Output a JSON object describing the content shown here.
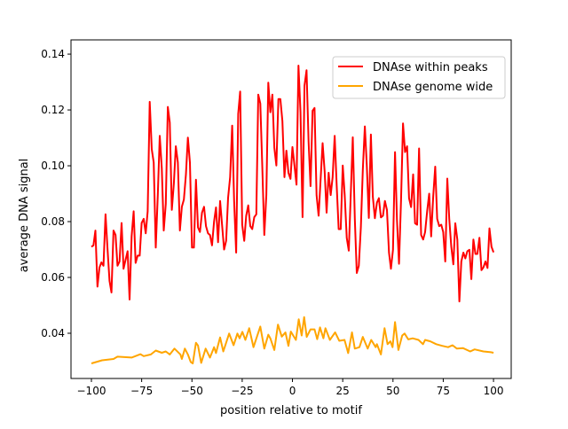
{
  "chart_data": {
    "type": "line",
    "title": "",
    "xlabel": "position relative to motif",
    "ylabel": "average DNA signal",
    "xlim": [
      -110.15,
      108.8
    ],
    "ylim": [
      0.0238,
      0.1451
    ],
    "xticks": [
      -100,
      -75,
      -50,
      -25,
      0,
      25,
      50,
      75,
      100
    ],
    "xtick_labels": [
      "−100",
      "−75",
      "−50",
      "−25",
      "0",
      "25",
      "50",
      "75",
      "100"
    ],
    "yticks": [
      0.04,
      0.06,
      0.08,
      0.1,
      0.12,
      0.14
    ],
    "ytick_labels": [
      "0.04",
      "0.06",
      "0.08",
      "0.10",
      "0.12",
      "0.14"
    ],
    "grid": false,
    "legend_position": "top-right",
    "series": [
      {
        "name": "DNAse within peaks",
        "color": "#ff0000",
        "x_start": -100,
        "x_step": 1,
        "values": [
          0.071,
          0.0715,
          0.0768,
          0.0567,
          0.0636,
          0.0654,
          0.0642,
          0.0826,
          0.0705,
          0.0588,
          0.0546,
          0.0768,
          0.0752,
          0.0642,
          0.0657,
          0.0795,
          0.0631,
          0.0663,
          0.0694,
          0.0521,
          0.0747,
          0.0837,
          0.0652,
          0.0678,
          0.0678,
          0.0795,
          0.081,
          0.0758,
          0.0837,
          0.1229,
          0.1059,
          0.1012,
          0.0707,
          0.0895,
          0.1107,
          0.0991,
          0.0768,
          0.0864,
          0.1211,
          0.1155,
          0.0842,
          0.0937,
          0.107,
          0.1012,
          0.0768,
          0.0853,
          0.0879,
          0.0969,
          0.1101,
          0.1012,
          0.0707,
          0.0707,
          0.095,
          0.0779,
          0.0763,
          0.0832,
          0.0853,
          0.0784,
          0.0758,
          0.0752,
          0.0715,
          0.08,
          0.0851,
          0.0726,
          0.0874,
          0.0789,
          0.07,
          0.0731,
          0.0885,
          0.0959,
          0.1144,
          0.0874,
          0.0689,
          0.1186,
          0.1266,
          0.0789,
          0.0731,
          0.0821,
          0.0858,
          0.0784,
          0.0773,
          0.0816,
          0.0826,
          0.1255,
          0.1223,
          0.1001,
          0.0752,
          0.0895,
          0.1298,
          0.1192,
          0.1255,
          0.1065,
          0.1001,
          0.1239,
          0.1239,
          0.116,
          0.0959,
          0.1054,
          0.0975,
          0.0953,
          0.1067,
          0.1001,
          0.0932,
          0.1359,
          0.1192,
          0.0816,
          0.1287,
          0.1342,
          0.1086,
          0.0927,
          0.1197,
          0.1207,
          0.0895,
          0.0821,
          0.0948,
          0.1081,
          0.098,
          0.0832,
          0.0975,
          0.0895,
          0.0959,
          0.1107,
          0.0927,
          0.0773,
          0.0773,
          0.1001,
          0.0895,
          0.0742,
          0.0696,
          0.0895,
          0.1102,
          0.081,
          0.0616,
          0.0642,
          0.0779,
          0.0985,
          0.1141,
          0.1001,
          0.0813,
          0.1112,
          0.0889,
          0.0812,
          0.0868,
          0.0884,
          0.0815,
          0.0821,
          0.0874,
          0.0842,
          0.0689,
          0.0631,
          0.0699,
          0.1049,
          0.0805,
          0.0649,
          0.0879,
          0.1152,
          0.1049,
          0.107,
          0.0884,
          0.0852,
          0.0969,
          0.0794,
          0.0789,
          0.1062,
          0.0752,
          0.0736,
          0.0763,
          0.0837,
          0.09,
          0.0747,
          0.0889,
          0.0997,
          0.081,
          0.0784,
          0.0789,
          0.0763,
          0.0657,
          0.0954,
          0.081,
          0.071,
          0.0647,
          0.0794,
          0.0736,
          0.0514,
          0.0657,
          0.0689,
          0.0668,
          0.0694,
          0.0699,
          0.0594,
          0.0736,
          0.0684,
          0.0684,
          0.0742,
          0.0626,
          0.0636,
          0.0657,
          0.0634,
          0.0776,
          0.071,
          0.069
        ]
      },
      {
        "name": "DNAse genome wide",
        "color": "#ffa500",
        "x": [
          -100,
          -94.7,
          -89,
          -87,
          -80,
          -75.6,
          -74,
          -70.4,
          -68,
          -66.8,
          -65,
          -63,
          -61,
          -58.7,
          -55.7,
          -55,
          -53.5,
          -52,
          -50.6,
          -49.6,
          -48,
          -47,
          -45.4,
          -43.2,
          -41,
          -39,
          -38,
          -36,
          -34.4,
          -31.5,
          -29.3,
          -27.4,
          -26.3,
          -24.9,
          -23.4,
          -21.5,
          -19.4,
          -16,
          -14,
          -12,
          -11,
          -9,
          -7.2,
          -5.3,
          -3.5,
          -2,
          -0.8,
          1.7,
          3.1,
          4.6,
          5.8,
          7.1,
          9,
          11,
          12.3,
          13.7,
          15.4,
          16.4,
          18.6,
          21.2,
          23.3,
          25.9,
          27.7,
          29.6,
          31,
          33.3,
          35,
          37.4,
          39.2,
          41.4,
          42,
          44,
          45.8,
          47.3,
          48.7,
          49.8,
          51,
          52.7,
          54.6,
          55.8,
          57.6,
          59.8,
          62.7,
          64.9,
          66,
          68.6,
          71.5,
          74.5,
          77.4,
          79.6,
          81.8,
          84.8,
          88.4,
          90.6,
          95,
          98.7,
          100
        ],
        "values": [
          0.0292,
          0.0303,
          0.0308,
          0.0316,
          0.0313,
          0.0325,
          0.0318,
          0.0324,
          0.0338,
          0.0335,
          0.033,
          0.0335,
          0.0324,
          0.0345,
          0.0324,
          0.0308,
          0.0345,
          0.0324,
          0.0297,
          0.0292,
          0.0366,
          0.0356,
          0.0294,
          0.0345,
          0.0313,
          0.035,
          0.0329,
          0.0385,
          0.0335,
          0.0399,
          0.0357,
          0.0399,
          0.0382,
          0.0405,
          0.0376,
          0.0418,
          0.035,
          0.0424,
          0.0345,
          0.0395,
          0.0382,
          0.034,
          0.0431,
          0.0388,
          0.0403,
          0.0355,
          0.0406,
          0.0376,
          0.045,
          0.0392,
          0.0458,
          0.0387,
          0.0414,
          0.0414,
          0.0379,
          0.0421,
          0.0382,
          0.0418,
          0.0376,
          0.0403,
          0.0373,
          0.0376,
          0.0329,
          0.0403,
          0.0345,
          0.035,
          0.0387,
          0.0345,
          0.0376,
          0.035,
          0.0361,
          0.0324,
          0.0418,
          0.0361,
          0.0371,
          0.035,
          0.044,
          0.034,
          0.0392,
          0.0399,
          0.0378,
          0.0382,
          0.0376,
          0.0361,
          0.0376,
          0.0371,
          0.0361,
          0.0355,
          0.035,
          0.0357,
          0.0345,
          0.0347,
          0.0335,
          0.0342,
          0.0335,
          0.0332,
          0.033
        ]
      }
    ]
  }
}
